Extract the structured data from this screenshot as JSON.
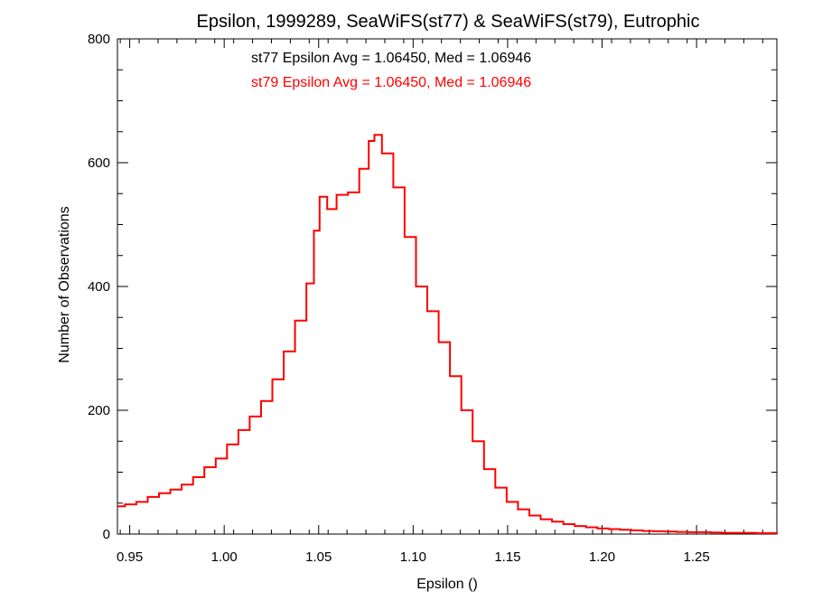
{
  "chart_data": {
    "type": "line",
    "title": "Epsilon, 1999289, SeaWiFS(st77) & SeaWiFS(st79), Eutrophic",
    "xlabel": "Epsilon ()",
    "ylabel": "Number of Observations",
    "xlim": [
      0.9435,
      1.2925
    ],
    "ylim": [
      0,
      800
    ],
    "x_ticks": [
      0.95,
      1.0,
      1.05,
      1.1,
      1.15,
      1.2,
      1.25
    ],
    "x_tick_labels": [
      "0.95",
      "1.00",
      "1.05",
      "1.10",
      "1.15",
      "1.20",
      "1.25"
    ],
    "y_ticks": [
      0,
      200,
      400,
      600,
      800
    ],
    "y_tick_labels": [
      "0",
      "200",
      "400",
      "600",
      "800"
    ],
    "annotations": [
      {
        "text": "st77 Epsilon Avg = 1.06450, Med = 1.06946",
        "color": "#000000"
      },
      {
        "text": "st79 Epsilon Avg = 1.06450, Med = 1.06946",
        "color": "#ff0000"
      }
    ],
    "series": [
      {
        "color": "#ff0000",
        "style": "step",
        "x": [
          0.9435,
          0.9475,
          0.9535,
          0.9595,
          0.9655,
          0.9715,
          0.9775,
          0.9835,
          0.9895,
          0.9955,
          1.0015,
          1.0075,
          1.0135,
          1.0195,
          1.0255,
          1.0315,
          1.0375,
          1.0435,
          1.0475,
          1.0505,
          1.0545,
          1.0595,
          1.0655,
          1.0715,
          1.0765,
          1.0795,
          1.0835,
          1.0895,
          1.0955,
          1.1015,
          1.1075,
          1.1135,
          1.1195,
          1.1255,
          1.1315,
          1.1375,
          1.1435,
          1.1495,
          1.1555,
          1.1615,
          1.1675,
          1.1735,
          1.1795,
          1.1855,
          1.1915,
          1.1975,
          1.2035,
          1.2095,
          1.2155,
          1.2215,
          1.2275,
          1.2335,
          1.2395,
          1.2455,
          1.2515,
          1.2575,
          1.2635,
          1.2695,
          1.2755,
          1.2815,
          1.2875,
          1.2925
        ],
        "y": [
          45,
          48,
          52,
          60,
          66,
          72,
          80,
          92,
          108,
          122,
          145,
          168,
          190,
          215,
          250,
          295,
          345,
          405,
          490,
          545,
          525,
          548,
          552,
          590,
          635,
          645,
          615,
          560,
          480,
          400,
          360,
          310,
          255,
          200,
          150,
          105,
          75,
          52,
          40,
          30,
          24,
          20,
          16,
          13,
          11,
          9,
          8,
          7,
          6,
          5,
          4.5,
          4,
          3.5,
          3,
          3,
          2.5,
          2,
          2,
          2,
          1.5,
          1.5,
          1
        ]
      }
    ]
  }
}
